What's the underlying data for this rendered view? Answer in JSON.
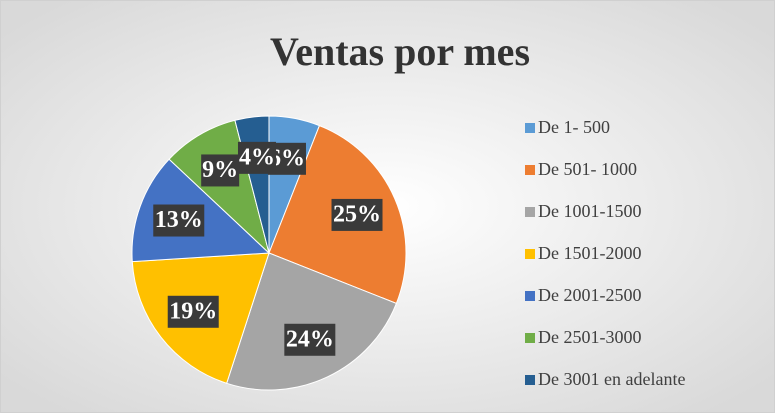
{
  "chart_data": {
    "type": "pie",
    "title": "Ventas por mes",
    "categories": [
      "De 1- 500",
      "De 501- 1000",
      "De 1001-1500",
      "De 1501-2000",
      "De 2001-2500",
      "De 2501-3000",
      "De 3001 en adelante"
    ],
    "values": [
      6,
      25,
      24,
      19,
      13,
      9,
      4
    ],
    "value_labels": [
      "6%",
      "25%",
      "24%",
      "19%",
      "13%",
      "9%",
      "4%"
    ],
    "colors": [
      "#5b9bd5",
      "#ed7d31",
      "#a5a5a5",
      "#ffc000",
      "#4472c4",
      "#70ad47",
      "#255e91"
    ],
    "legend": "right"
  }
}
